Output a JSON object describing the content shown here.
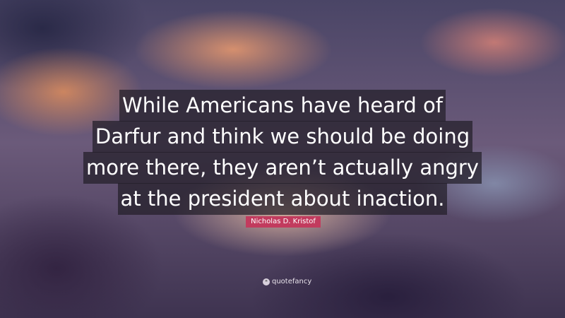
{
  "quote": {
    "lines": [
      "While Americans have heard of",
      "Darfur and think we should be doing",
      "more there, they aren’t actually angry",
      "at the president about inaction."
    ]
  },
  "author": "Nicholas D. Kristof",
  "brand": {
    "name": "quotefancy",
    "icon": "quote-mark-icon"
  },
  "colors": {
    "author_badge": "#c23b5e",
    "quote_box": "#231e28"
  }
}
